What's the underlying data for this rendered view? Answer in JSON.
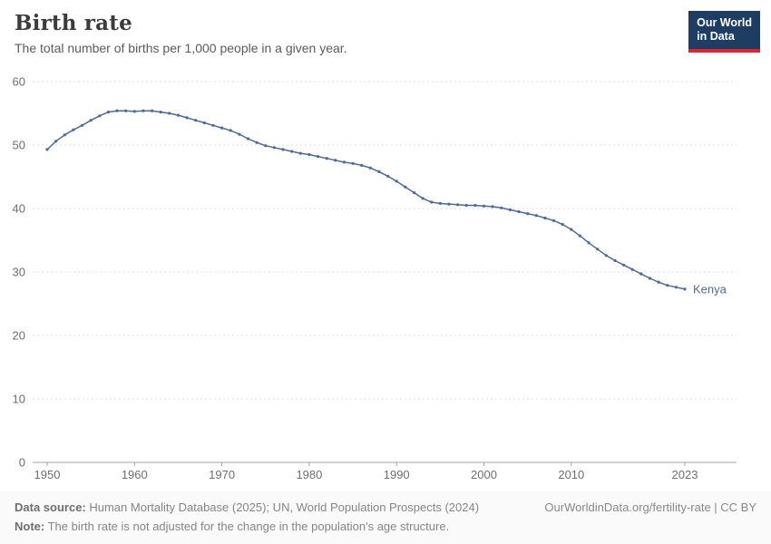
{
  "header": {
    "title": "Birth rate",
    "subtitle": "The total number of births per 1,000 people in a given year."
  },
  "logo": {
    "line1": "Our World",
    "line2": "in Data"
  },
  "chart_data": {
    "type": "line",
    "title": "Birth rate",
    "xlabel": "",
    "ylabel": "",
    "xlim": [
      1950,
      2023
    ],
    "ylim": [
      0,
      60
    ],
    "grid": true,
    "x_ticks": [
      1950,
      1960,
      1970,
      1980,
      1990,
      2000,
      2010,
      2023
    ],
    "y_ticks": [
      0,
      10,
      20,
      30,
      40,
      50,
      60
    ],
    "line_color": "#4c6a9c",
    "series": [
      {
        "name": "Kenya",
        "x": [
          1950,
          1951,
          1952,
          1953,
          1954,
          1955,
          1956,
          1957,
          1958,
          1959,
          1960,
          1961,
          1962,
          1963,
          1964,
          1965,
          1966,
          1967,
          1968,
          1969,
          1970,
          1971,
          1972,
          1973,
          1974,
          1975,
          1976,
          1977,
          1978,
          1979,
          1980,
          1981,
          1982,
          1983,
          1984,
          1985,
          1986,
          1987,
          1988,
          1989,
          1990,
          1991,
          1992,
          1993,
          1994,
          1995,
          1996,
          1997,
          1998,
          1999,
          2000,
          2001,
          2002,
          2003,
          2004,
          2005,
          2006,
          2007,
          2008,
          2009,
          2010,
          2011,
          2012,
          2013,
          2014,
          2015,
          2016,
          2017,
          2018,
          2019,
          2020,
          2021,
          2022,
          2023
        ],
        "values": [
          49.3,
          50.6,
          51.6,
          52.4,
          53.1,
          53.9,
          54.6,
          55.2,
          55.4,
          55.4,
          55.3,
          55.4,
          55.4,
          55.2,
          55.0,
          54.7,
          54.3,
          53.9,
          53.5,
          53.1,
          52.7,
          52.3,
          51.7,
          51.0,
          50.4,
          49.9,
          49.6,
          49.3,
          49.0,
          48.7,
          48.5,
          48.2,
          47.9,
          47.6,
          47.3,
          47.1,
          46.8,
          46.4,
          45.8,
          45.1,
          44.3,
          43.4,
          42.5,
          41.6,
          41.0,
          40.8,
          40.7,
          40.6,
          40.5,
          40.5,
          40.4,
          40.3,
          40.1,
          39.8,
          39.5,
          39.2,
          38.9,
          38.5,
          38.1,
          37.5,
          36.7,
          35.7,
          34.6,
          33.6,
          32.6,
          31.8,
          31.1,
          30.4,
          29.7,
          29.0,
          28.4,
          27.9,
          27.6,
          27.3
        ]
      }
    ]
  },
  "footer": {
    "source_label": "Data source:",
    "source_text": " Human Mortality Database (2025); UN, World Population Prospects (2024)",
    "note_label": "Note:",
    "note_text": " The birth rate is not adjusted for the change in the population's age structure.",
    "credit": "OurWorldinData.org/fertility-rate | CC BY"
  }
}
